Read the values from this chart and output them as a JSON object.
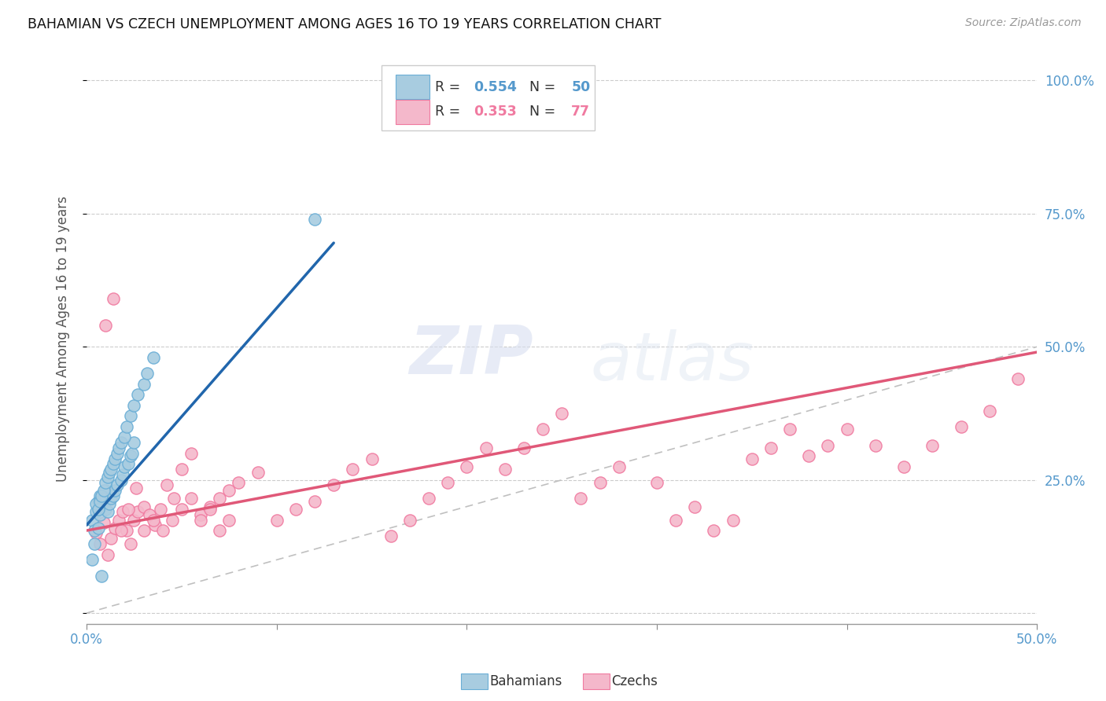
{
  "title": "BAHAMIAN VS CZECH UNEMPLOYMENT AMONG AGES 16 TO 19 YEARS CORRELATION CHART",
  "source": "Source: ZipAtlas.com",
  "ylabel": "Unemployment Among Ages 16 to 19 years",
  "xlim": [
    0.0,
    0.5
  ],
  "ylim": [
    -0.02,
    1.05
  ],
  "x_tick_pos": [
    0.0,
    0.5
  ],
  "x_tick_labels": [
    "0.0%",
    "50.0%"
  ],
  "y_ticks": [
    0.0,
    0.25,
    0.5,
    0.75,
    1.0
  ],
  "y_tick_labels_right": [
    "",
    "25.0%",
    "50.0%",
    "75.0%",
    "100.0%"
  ],
  "bahamian_color": "#a8cce0",
  "czech_color": "#f4b8cb",
  "bahamian_edge": "#6aaed6",
  "czech_edge": "#f07aa0",
  "trend_blue": "#2166ac",
  "trend_pink": "#e05878",
  "diag_color": "#c0c0c0",
  "R_bah": "0.554",
  "N_bah": "50",
  "R_cze": "0.353",
  "N_cze": "77",
  "legend_label_bah": "Bahamians",
  "legend_label_cze": "Czechs",
  "watermark_zip": "ZIP",
  "watermark_atlas": "atlas",
  "right_tick_color": "#5599cc",
  "bahamian_x": [
    0.003,
    0.004,
    0.005,
    0.006,
    0.007,
    0.007,
    0.008,
    0.009,
    0.01,
    0.01,
    0.011,
    0.012,
    0.013,
    0.014,
    0.015,
    0.016,
    0.018,
    0.019,
    0.02,
    0.022,
    0.023,
    0.024,
    0.025,
    0.005,
    0.006,
    0.007,
    0.008,
    0.009,
    0.01,
    0.011,
    0.012,
    0.013,
    0.014,
    0.015,
    0.016,
    0.017,
    0.018,
    0.02,
    0.021,
    0.023,
    0.025,
    0.027,
    0.03,
    0.032,
    0.035,
    0.12,
    0.003,
    0.004,
    0.006,
    0.008
  ],
  "bahamian_y": [
    0.175,
    0.155,
    0.19,
    0.21,
    0.22,
    0.185,
    0.2,
    0.215,
    0.23,
    0.195,
    0.19,
    0.205,
    0.215,
    0.22,
    0.23,
    0.24,
    0.25,
    0.26,
    0.275,
    0.28,
    0.295,
    0.3,
    0.32,
    0.205,
    0.195,
    0.21,
    0.22,
    0.23,
    0.245,
    0.255,
    0.265,
    0.27,
    0.28,
    0.29,
    0.3,
    0.31,
    0.32,
    0.33,
    0.35,
    0.37,
    0.39,
    0.41,
    0.43,
    0.45,
    0.48,
    0.74,
    0.1,
    0.13,
    0.16,
    0.07
  ],
  "czech_x": [
    0.005,
    0.007,
    0.009,
    0.011,
    0.013,
    0.015,
    0.017,
    0.019,
    0.021,
    0.023,
    0.025,
    0.027,
    0.03,
    0.033,
    0.036,
    0.039,
    0.042,
    0.046,
    0.05,
    0.055,
    0.06,
    0.065,
    0.07,
    0.075,
    0.08,
    0.09,
    0.1,
    0.11,
    0.12,
    0.13,
    0.14,
    0.15,
    0.16,
    0.17,
    0.18,
    0.19,
    0.2,
    0.21,
    0.22,
    0.23,
    0.24,
    0.25,
    0.26,
    0.27,
    0.28,
    0.3,
    0.31,
    0.32,
    0.33,
    0.34,
    0.35,
    0.36,
    0.37,
    0.38,
    0.39,
    0.4,
    0.415,
    0.43,
    0.445,
    0.46,
    0.475,
    0.49,
    0.01,
    0.014,
    0.018,
    0.022,
    0.026,
    0.03,
    0.035,
    0.04,
    0.045,
    0.05,
    0.055,
    0.06,
    0.065,
    0.07,
    0.075
  ],
  "czech_y": [
    0.15,
    0.13,
    0.17,
    0.11,
    0.14,
    0.16,
    0.175,
    0.19,
    0.155,
    0.13,
    0.175,
    0.19,
    0.2,
    0.185,
    0.165,
    0.195,
    0.24,
    0.215,
    0.27,
    0.3,
    0.185,
    0.2,
    0.215,
    0.23,
    0.245,
    0.265,
    0.175,
    0.195,
    0.21,
    0.24,
    0.27,
    0.29,
    0.145,
    0.175,
    0.215,
    0.245,
    0.275,
    0.31,
    0.27,
    0.31,
    0.345,
    0.375,
    0.215,
    0.245,
    0.275,
    0.245,
    0.175,
    0.2,
    0.155,
    0.175,
    0.29,
    0.31,
    0.345,
    0.295,
    0.315,
    0.345,
    0.315,
    0.275,
    0.315,
    0.35,
    0.38,
    0.44,
    0.54,
    0.59,
    0.155,
    0.195,
    0.235,
    0.155,
    0.175,
    0.155,
    0.175,
    0.195,
    0.215,
    0.175,
    0.195,
    0.155,
    0.175
  ],
  "bah_trend_x": [
    0.0,
    0.13
  ],
  "bah_trend_y": [
    0.165,
    0.695
  ],
  "cze_trend_x": [
    0.0,
    0.5
  ],
  "cze_trend_y": [
    0.155,
    0.49
  ]
}
